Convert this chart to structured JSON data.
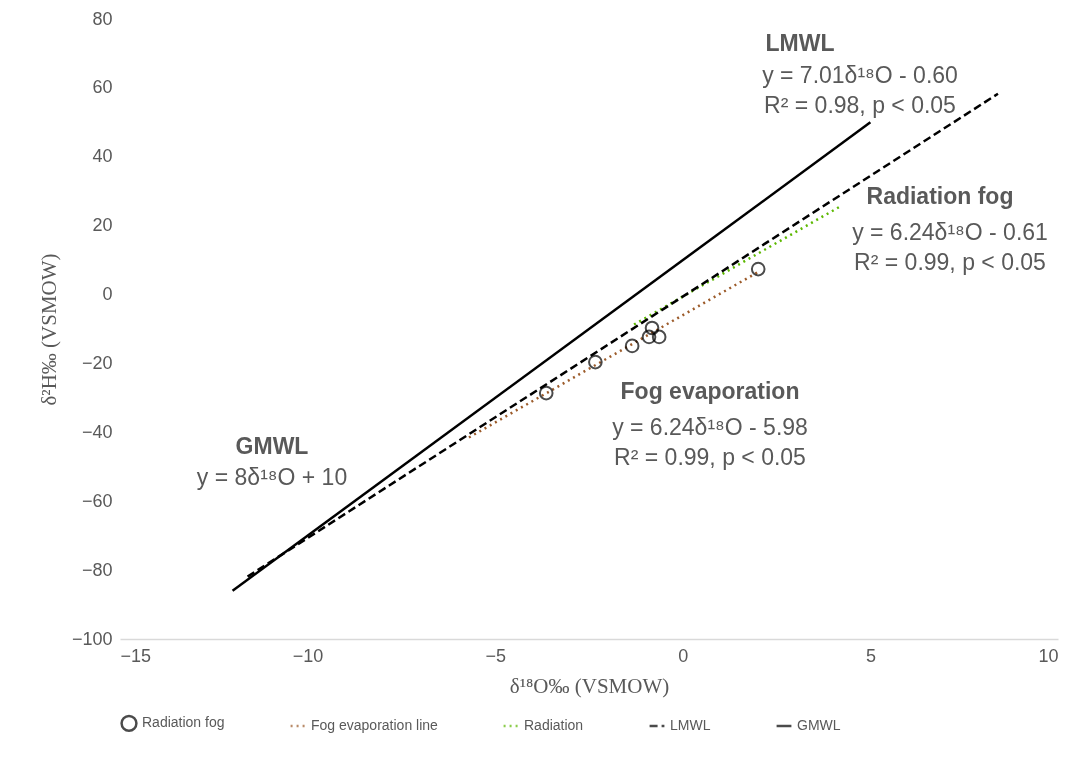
{
  "chart_data": {
    "type": "scatter",
    "xlabel": "δ¹⁸O‰ (VSMOW)",
    "ylabel": "δ²H‰ (VSMOW)",
    "xlim": [
      -15,
      10
    ],
    "xticks": [
      -15,
      -10,
      -5,
      0,
      5,
      10
    ],
    "ylim": [
      -100,
      80
    ],
    "yticks": [
      -100,
      -80,
      -60,
      -40,
      -20,
      0,
      20,
      40,
      60,
      80
    ],
    "grid": false,
    "legend": "bottom",
    "series": [
      {
        "name": "Radiation fog",
        "marker": "circle",
        "color": "#000000",
        "x": [
          -3.64,
          -2.33,
          -1.35,
          -0.82,
          -0.9,
          -0.63,
          2.01
        ],
        "values": [
          -28.6,
          -19.6,
          -14.9,
          -9.7,
          -12.3,
          -12.3,
          7.4
        ]
      },
      {
        "name": "Fog evaporation line",
        "type": "line",
        "line_style": "dotted",
        "color": "#9c5b2a",
        "x": [
          -5.7,
          2.0
        ],
        "values": [
          -41.5,
          6.5
        ]
      },
      {
        "name": "Radiation",
        "type": "line",
        "line_style": "dotted",
        "color": "#5cb800",
        "x": [
          -1.3,
          4.2
        ],
        "values": [
          -8.7,
          25.6
        ]
      },
      {
        "name": "LMWL",
        "type": "line",
        "line_style": "dashed",
        "color": "#000000",
        "x": [
          -11.6,
          8.4
        ],
        "values": [
          -81.9,
          58.3
        ]
      },
      {
        "name": "GMWL",
        "type": "line",
        "line_style": "solid",
        "color": "#000000",
        "x": [
          -12,
          5
        ],
        "values": [
          -86,
          50
        ]
      }
    ],
    "annotations": [
      "LMWL",
      "y = 7.01δ¹⁸O - 0.60",
      "R² = 0.98, p < 0.05",
      "Radiation fog",
      "y = 6.24δ¹⁸O - 0.61",
      "R² = 0.99, p < 0.05",
      "Fog evaporation",
      "y = 6.24δ¹⁸O - 5.98",
      "R² = 0.99, p < 0.05",
      "GMWL",
      "y = 8δ¹⁸O + 10"
    ]
  }
}
